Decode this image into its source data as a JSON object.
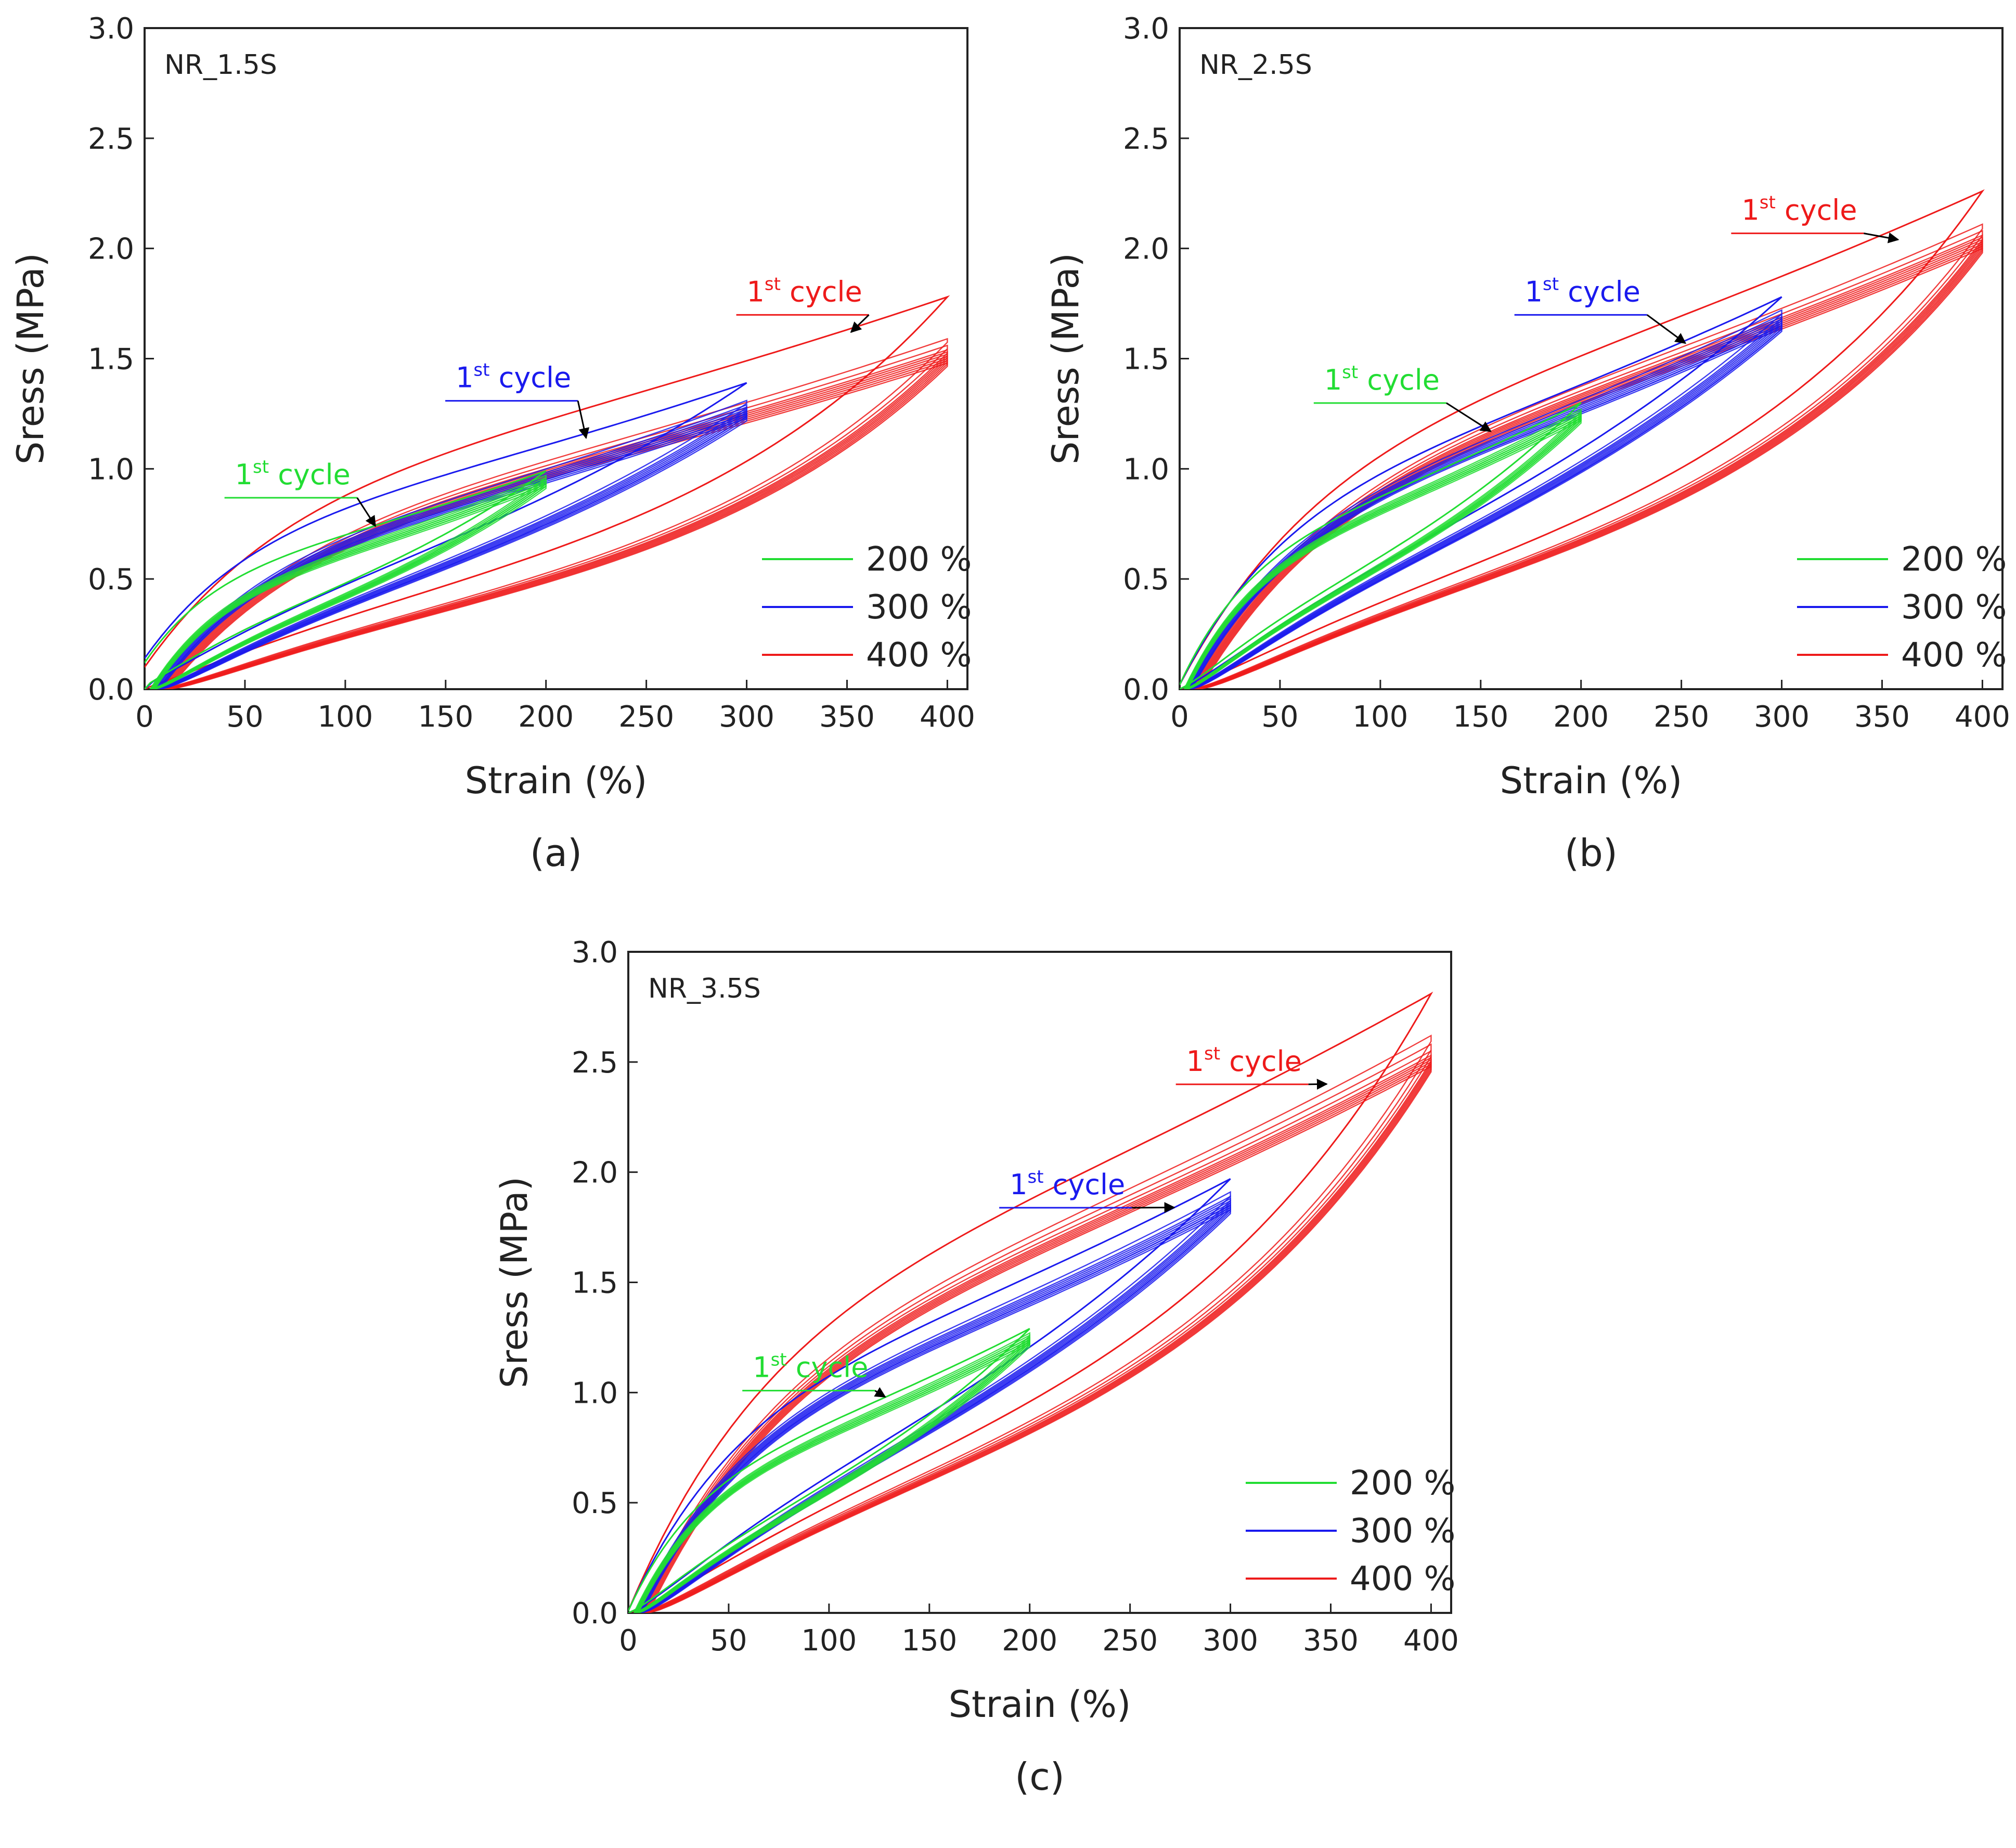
{
  "colors": {
    "200": "#22dd33",
    "300": "#1a1aee",
    "400": "#ee1a1a",
    "axis": "#222222",
    "arrow": "#000000"
  },
  "chart_data": [
    {
      "type": "line",
      "panel_label": "(a)",
      "sample": "NR_1.5S",
      "xlabel": "Strain (%)",
      "ylabel": "Sress (MPa)",
      "xlim": [
        0,
        410
      ],
      "ylim": [
        0,
        3.0
      ],
      "xticks": [
        0,
        50,
        100,
        150,
        200,
        250,
        300,
        350,
        400
      ],
      "yticks": [
        0.0,
        0.5,
        1.0,
        1.5,
        2.0,
        2.5,
        3.0
      ],
      "legend": {
        "placement": "bottom-right",
        "entries": [
          {
            "key": "200",
            "label": "200 %"
          },
          {
            "key": "300",
            "label": "300 %"
          },
          {
            "key": "400",
            "label": "400 %"
          }
        ]
      },
      "annotations": [
        {
          "key": "200",
          "base": "1",
          "sup": "st",
          "word": " cycle",
          "tx": 45,
          "ty": 0.93,
          "ax": 115,
          "ay": 0.74
        },
        {
          "key": "300",
          "base": "1",
          "sup": "st",
          "word": " cycle",
          "tx": 155,
          "ty": 1.37,
          "ax": 220,
          "ay": 1.14
        },
        {
          "key": "400",
          "base": "1",
          "sup": "st",
          "word": " cycle",
          "tx": 300,
          "ty": 1.76,
          "ax": 352,
          "ay": 1.62
        }
      ],
      "series": [
        {
          "key": "200",
          "name": "200 %",
          "max_strain": 200,
          "first_peak": 0.99,
          "first_start": 0.12,
          "cycle_peaks": [
            0.97,
            0.96,
            0.95,
            0.95,
            0.94,
            0.94,
            0.93,
            0.93,
            0.92
          ],
          "residual_strain": 5
        },
        {
          "key": "300",
          "name": "300 %",
          "max_strain": 300,
          "first_peak": 1.39,
          "first_start": 0.14,
          "cycle_peaks": [
            1.31,
            1.29,
            1.28,
            1.27,
            1.26,
            1.25,
            1.25,
            1.24,
            1.23
          ],
          "residual_strain": 8
        },
        {
          "key": "400",
          "name": "400 %",
          "max_strain": 400,
          "first_peak": 1.78,
          "first_start": 0.1,
          "cycle_peaks": [
            1.59,
            1.56,
            1.54,
            1.53,
            1.52,
            1.51,
            1.5,
            1.49,
            1.48
          ],
          "residual_strain": 12
        }
      ]
    },
    {
      "type": "line",
      "panel_label": "(b)",
      "sample": "NR_2.5S",
      "xlabel": "Strain (%)",
      "ylabel": "Sress (MPa)",
      "xlim": [
        0,
        410
      ],
      "ylim": [
        0,
        3.0
      ],
      "xticks": [
        0,
        50,
        100,
        150,
        200,
        250,
        300,
        350,
        400
      ],
      "yticks": [
        0.0,
        0.5,
        1.0,
        1.5,
        2.0,
        2.5,
        3.0
      ],
      "legend": {
        "placement": "bottom-right",
        "entries": [
          {
            "key": "200",
            "label": "200 %"
          },
          {
            "key": "300",
            "label": "300 %"
          },
          {
            "key": "400",
            "label": "400 %"
          }
        ]
      },
      "annotations": [
        {
          "key": "200",
          "base": "1",
          "sup": "st",
          "word": " cycle",
          "tx": 72,
          "ty": 1.36,
          "ax": 155,
          "ay": 1.17
        },
        {
          "key": "300",
          "base": "1",
          "sup": "st",
          "word": " cycle",
          "tx": 172,
          "ty": 1.76,
          "ax": 252,
          "ay": 1.57
        },
        {
          "key": "400",
          "base": "1",
          "sup": "st",
          "word": " cycle",
          "tx": 280,
          "ty": 2.13,
          "ax": 358,
          "ay": 2.04
        }
      ],
      "series": [
        {
          "key": "200",
          "name": "200 %",
          "max_strain": 200,
          "first_peak": 1.3,
          "first_start": 0.02,
          "cycle_peaks": [
            1.27,
            1.26,
            1.25,
            1.25,
            1.24,
            1.24,
            1.23,
            1.23,
            1.22
          ],
          "residual_strain": 4
        },
        {
          "key": "300",
          "name": "300 %",
          "max_strain": 300,
          "first_peak": 1.78,
          "first_start": 0.02,
          "cycle_peaks": [
            1.72,
            1.7,
            1.69,
            1.68,
            1.67,
            1.66,
            1.65,
            1.65,
            1.64
          ],
          "residual_strain": 6
        },
        {
          "key": "400",
          "name": "400 %",
          "max_strain": 400,
          "first_peak": 2.26,
          "first_start": 0.02,
          "cycle_peaks": [
            2.11,
            2.08,
            2.06,
            2.05,
            2.04,
            2.03,
            2.02,
            2.01,
            2.0
          ],
          "residual_strain": 10
        }
      ]
    },
    {
      "type": "line",
      "panel_label": "(c)",
      "sample": "NR_3.5S",
      "xlabel": "Strain (%)",
      "ylabel": "Sress (MPa)",
      "xlim": [
        0,
        410
      ],
      "ylim": [
        0,
        3.0
      ],
      "xticks": [
        0,
        50,
        100,
        150,
        200,
        250,
        300,
        350,
        400
      ],
      "yticks": [
        0.0,
        0.5,
        1.0,
        1.5,
        2.0,
        2.5,
        3.0
      ],
      "legend": {
        "placement": "bottom-right",
        "entries": [
          {
            "key": "200",
            "label": "200 %"
          },
          {
            "key": "300",
            "label": "300 %"
          },
          {
            "key": "400",
            "label": "400 %"
          }
        ]
      },
      "annotations": [
        {
          "key": "200",
          "base": "1",
          "sup": "st",
          "word": " cycle",
          "tx": 62,
          "ty": 1.07,
          "ax": 128,
          "ay": 0.98
        },
        {
          "key": "300",
          "base": "1",
          "sup": "st",
          "word": " cycle",
          "tx": 190,
          "ty": 1.9,
          "ax": 272,
          "ay": 1.84
        },
        {
          "key": "400",
          "base": "1",
          "sup": "st",
          "word": " cycle",
          "tx": 278,
          "ty": 2.46,
          "ax": 348,
          "ay": 2.4
        }
      ],
      "series": [
        {
          "key": "200",
          "name": "200 %",
          "max_strain": 200,
          "first_peak": 1.29,
          "first_start": 0.01,
          "cycle_peaks": [
            1.27,
            1.26,
            1.25,
            1.25,
            1.24,
            1.24,
            1.23,
            1.23,
            1.22
          ],
          "residual_strain": 5
        },
        {
          "key": "300",
          "name": "300 %",
          "max_strain": 300,
          "first_peak": 1.97,
          "first_start": 0.01,
          "cycle_peaks": [
            1.91,
            1.89,
            1.88,
            1.87,
            1.86,
            1.85,
            1.85,
            1.84,
            1.83
          ],
          "residual_strain": 7
        },
        {
          "key": "400",
          "name": "400 %",
          "max_strain": 400,
          "first_peak": 2.81,
          "first_start": 0.01,
          "cycle_peaks": [
            2.62,
            2.58,
            2.55,
            2.53,
            2.52,
            2.51,
            2.5,
            2.49,
            2.48
          ],
          "residual_strain": 10
        }
      ]
    }
  ]
}
